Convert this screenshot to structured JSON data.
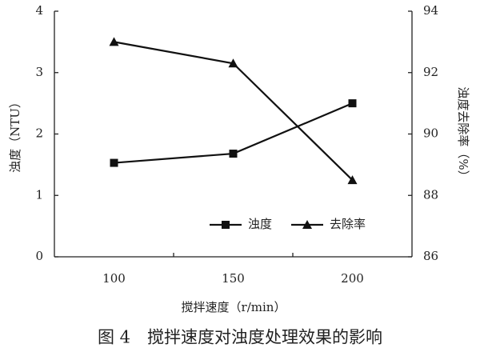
{
  "chart_data": {
    "type": "line",
    "title": "图 4　搅拌速度对浊度处理效果的影响",
    "x_label": "搅拌速度（r/min）",
    "y_label": "浊度（NTU）",
    "y2_label": "浊度去除率（%）",
    "categories": [
      "100",
      "150",
      "200"
    ],
    "ylim": [
      0,
      4
    ],
    "yticks": [
      0,
      1,
      2,
      3,
      4
    ],
    "y2lim": [
      86,
      94
    ],
    "y2ticks": [
      86,
      88,
      90,
      92,
      94
    ],
    "grid": false,
    "legend": "lower right",
    "series": [
      {
        "name": "浊度",
        "color": "#111111",
        "marker": "square",
        "values": [
          1.53,
          1.68,
          2.5
        ]
      },
      {
        "name": "去除率",
        "color": "#111111",
        "marker": "triangle",
        "axis": "y2",
        "values": [
          93.0,
          92.3,
          88.5
        ]
      }
    ]
  }
}
